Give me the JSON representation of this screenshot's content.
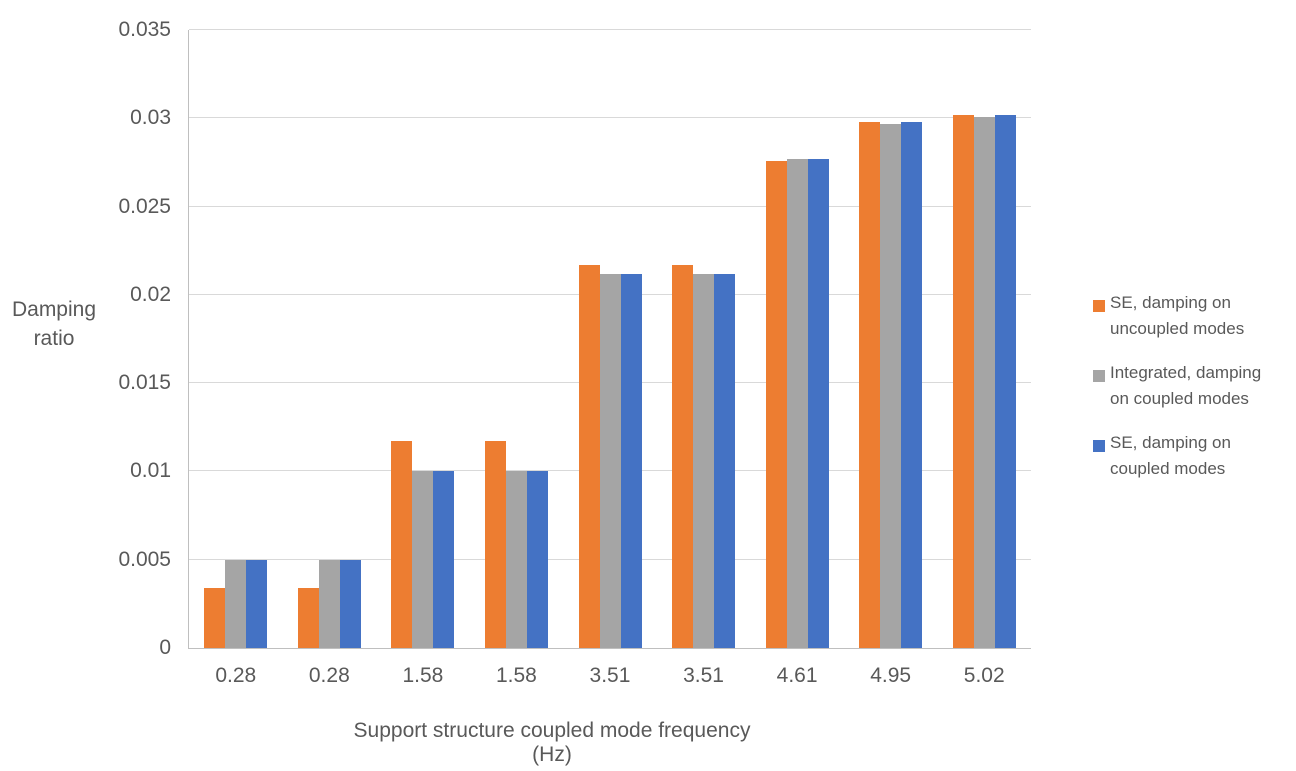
{
  "chart_data": {
    "type": "bar",
    "title": "",
    "xlabel": "Support structure coupled mode frequency (Hz)",
    "ylabel": "Damping ratio",
    "ylabel_lines": [
      "Damping",
      "ratio"
    ],
    "categories": [
      "0.28",
      "0.28",
      "1.58",
      "1.58",
      "3.51",
      "3.51",
      "4.61",
      "4.95",
      "5.02"
    ],
    "series": [
      {
        "name": "SE, damping on uncoupled modes",
        "legend_lines": [
          "SE, damping on",
          "uncoupled modes"
        ],
        "color": "#ED7D31",
        "values": [
          0.0034,
          0.0034,
          0.0117,
          0.0117,
          0.0217,
          0.0217,
          0.0276,
          0.0298,
          0.0302
        ]
      },
      {
        "name": "Integrated, damping on coupled modes",
        "legend_lines": [
          "Integrated, damping",
          "on coupled modes"
        ],
        "color": "#A5A5A5",
        "values": [
          0.005,
          0.005,
          0.01,
          0.01,
          0.0212,
          0.0212,
          0.0277,
          0.0297,
          0.0301
        ]
      },
      {
        "name": "SE, damping on coupled modes",
        "legend_lines": [
          "SE, damping on",
          "coupled modes"
        ],
        "color": "#4472C4",
        "values": [
          0.005,
          0.005,
          0.01,
          0.01,
          0.0212,
          0.0212,
          0.0277,
          0.0298,
          0.0302
        ]
      }
    ],
    "ylim": [
      0,
      0.035
    ],
    "ytick_step": 0.005,
    "ytick_labels": [
      "0",
      "0.005",
      "0.01",
      "0.015",
      "0.02",
      "0.025",
      "0.03",
      "0.035"
    ],
    "grid": true,
    "legend_position": "right"
  },
  "colors": {
    "gridline": "#D9D9D9",
    "axis_line": "#BFBFBF",
    "text": "#595959",
    "background": "#FFFFFF"
  }
}
